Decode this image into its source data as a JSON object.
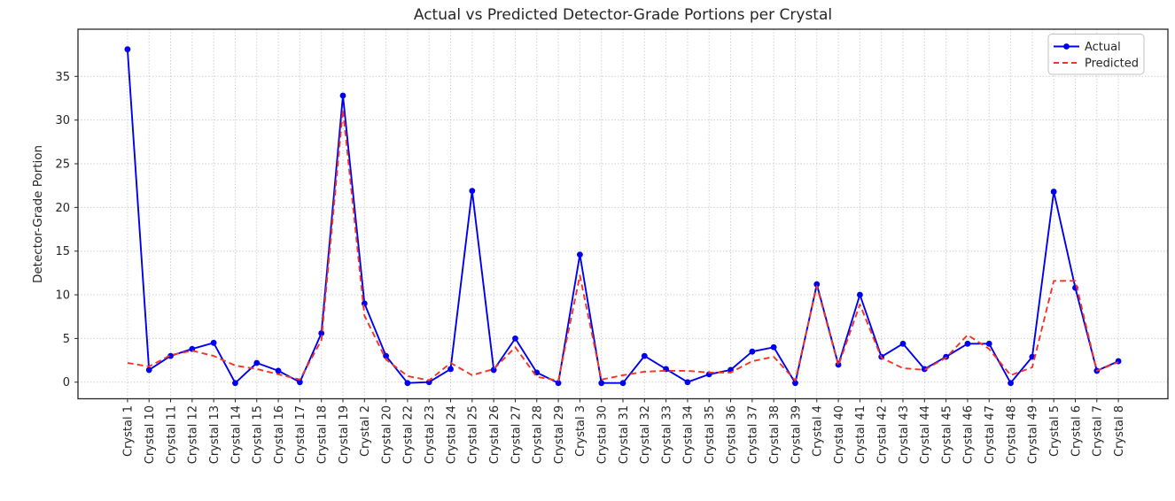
{
  "chart_data": {
    "type": "line",
    "title": "Actual vs Predicted Detector-Grade Portions per Crystal",
    "xlabel": "",
    "ylabel": "Detector-Grade Portion",
    "categories": [
      "Crystal 1",
      "Crystal 10",
      "Crystal 11",
      "Crystal 12",
      "Crystal 13",
      "Crystal 14",
      "Crystal 15",
      "Crystal 16",
      "Crystal 17",
      "Crystal 18",
      "Crystal 19",
      "Crystal 2",
      "Crystal 20",
      "Crystal 22",
      "Crystal 23",
      "Crystal 24",
      "Crystal 25",
      "Crystal 26",
      "Crystal 27",
      "Crystal 28",
      "Crystal 29",
      "Crystal 3",
      "Crystal 30",
      "Crystal 31",
      "Crystal 32",
      "Crystal 33",
      "Crystal 34",
      "Crystal 35",
      "Crystal 36",
      "Crystal 37",
      "Crystal 38",
      "Crystal 39",
      "Crystal 4",
      "Crystal 40",
      "Crystal 41",
      "Crystal 42",
      "Crystal 43",
      "Crystal 44",
      "Crystal 45",
      "Crystal 46",
      "Crystal 47",
      "Crystal 48",
      "Crystal 49",
      "Crystal 5",
      "Crystal 6",
      "Crystal 7",
      "Crystal 8"
    ],
    "series": [
      {
        "name": "Actual",
        "color": "#0000f0",
        "style": "solid",
        "marker": "circle",
        "values": [
          38.1,
          1.4,
          3.0,
          3.8,
          4.5,
          -0.1,
          2.2,
          1.3,
          0.0,
          5.6,
          32.8,
          9.0,
          3.0,
          -0.1,
          0.0,
          1.5,
          21.9,
          1.4,
          5.0,
          1.1,
          -0.1,
          14.6,
          -0.1,
          -0.1,
          3.0,
          1.5,
          0.0,
          0.9,
          1.4,
          3.5,
          4.0,
          -0.1,
          11.2,
          2.0,
          10.0,
          2.9,
          4.4,
          1.5,
          2.9,
          4.4,
          4.4,
          -0.1,
          2.9,
          21.8,
          10.8,
          1.3,
          2.4
        ]
      },
      {
        "name": "Predicted",
        "color": "#f43425",
        "style": "dashed",
        "marker": "none",
        "values": [
          2.2,
          1.8,
          3.1,
          3.6,
          3.0,
          1.9,
          1.5,
          0.9,
          0.3,
          4.8,
          31.2,
          7.6,
          2.6,
          0.7,
          0.2,
          2.2,
          0.8,
          1.5,
          4.0,
          0.6,
          0.2,
          12.2,
          0.3,
          0.8,
          1.2,
          1.3,
          1.3,
          1.1,
          1.1,
          2.4,
          2.9,
          0.2,
          11.0,
          1.9,
          8.9,
          2.8,
          1.6,
          1.4,
          2.8,
          5.4,
          3.8,
          0.8,
          1.7,
          11.6,
          11.6,
          1.3,
          2.3
        ]
      }
    ],
    "yticks": [
      0,
      5,
      10,
      15,
      20,
      25,
      30,
      35
    ],
    "ylim": [
      -1.9,
      40.4
    ],
    "grid": true,
    "grid_style": "dotted",
    "legend_position": "upper right",
    "colors": {
      "background": "#ffffff",
      "grid": "#c9c9c9",
      "frame": "#262626",
      "text": "#262626"
    }
  }
}
